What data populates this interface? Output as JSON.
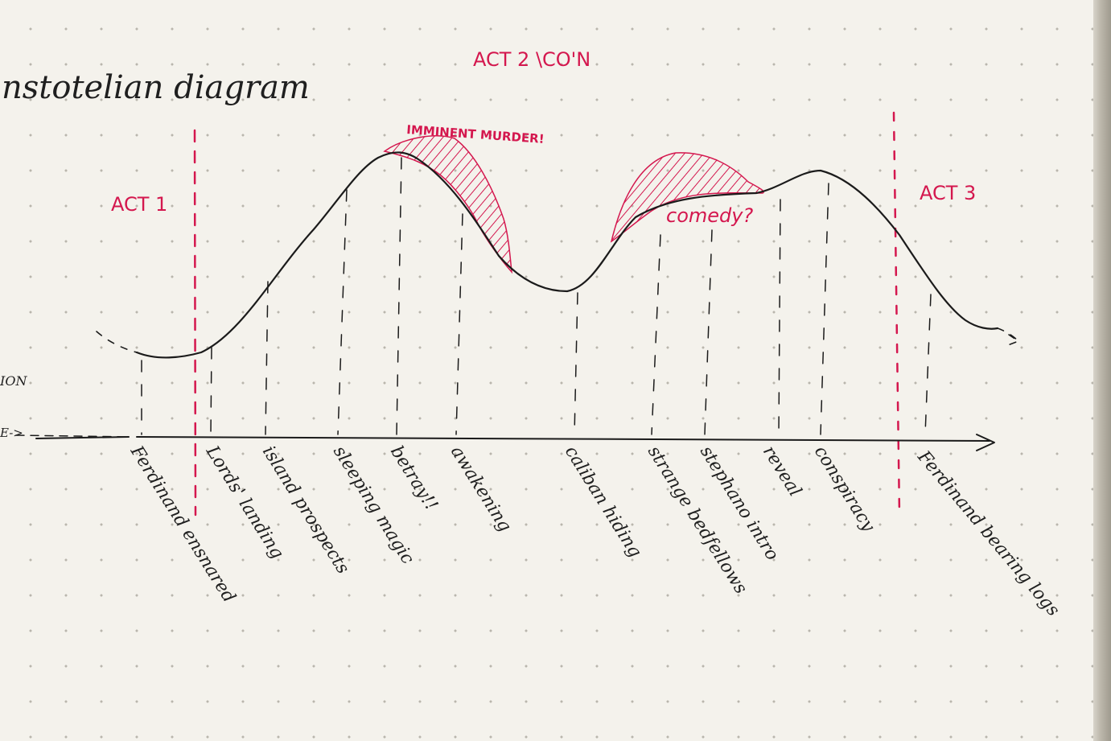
{
  "title": "nstotelian diagram",
  "acts": {
    "act1": "ACT 1",
    "act2": "ACT 2 \\CO'N",
    "act3": "ACT 3"
  },
  "annotations": {
    "imminent_murder": "IMMINENT MURDER!",
    "comedy": "comedy?"
  },
  "axis_fragments": {
    "y_axis_label_fragment": "ION",
    "x_axis_label_fragment": "E->"
  },
  "plot_points": [
    "Ferdinand ensnared",
    "Lords' landing",
    "island prospects",
    "sleeping magic",
    "betray!!",
    "awakening",
    "caliban hiding",
    "strange bedfellows",
    "stephano intro",
    "reveal",
    "conspiracy",
    "Ferdinand bearing logs"
  ],
  "colors": {
    "ink": "#1b1b1b",
    "red_ink": "#d4174e",
    "paper": "#f4f2ec"
  }
}
